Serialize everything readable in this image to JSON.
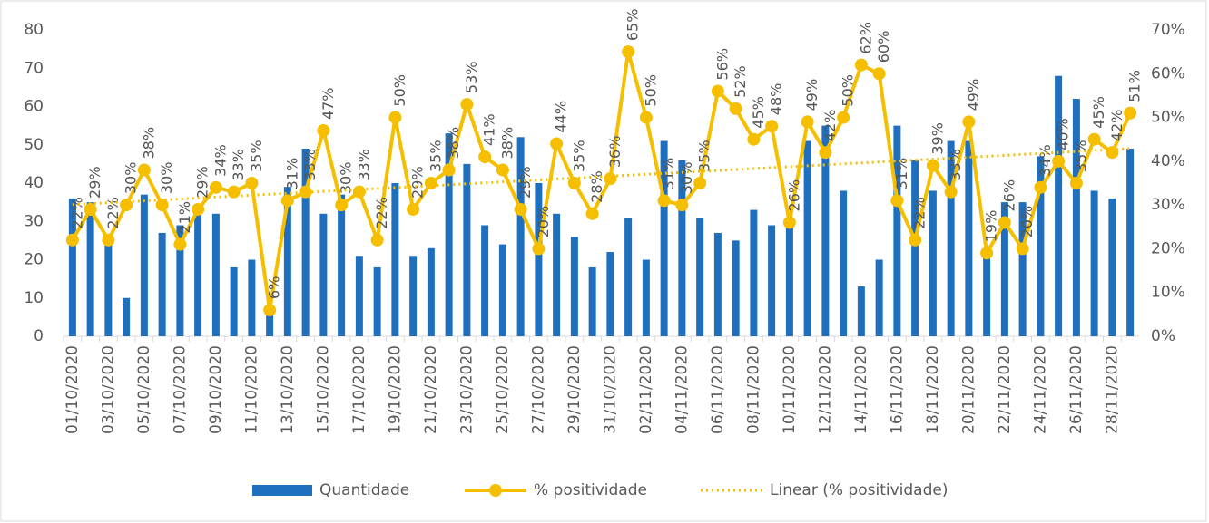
{
  "chart_data": {
    "type": "bar-line",
    "categories": [
      "01/10/2020",
      null,
      "03/10/2020",
      null,
      "05/10/2020",
      null,
      "07/10/2020",
      null,
      "09/10/2020",
      null,
      "11/10/2020",
      null,
      "13/10/2020",
      null,
      "15/10/2020",
      null,
      "17/10/2020",
      null,
      "19/10/2020",
      null,
      "21/10/2020",
      null,
      "23/10/2020",
      null,
      "25/10/2020",
      null,
      "27/10/2020",
      null,
      "29/10/2020",
      null,
      "31/10/2020",
      null,
      "02/11/2020",
      null,
      "04/11/2020",
      null,
      "06/11/2020",
      null,
      "08/11/2020",
      null,
      "10/11/2020",
      null,
      "12/11/2020",
      null,
      "14/11/2020",
      null,
      "16/11/2020",
      null,
      "18/11/2020",
      null,
      "20/11/2020",
      null,
      "22/11/2020",
      null,
      "24/11/2020",
      null,
      "26/11/2020",
      null,
      "28/11/2020",
      null
    ],
    "series": [
      {
        "name": "Quantidade",
        "color": "#1f6fbf",
        "values": [
          36,
          35,
          24,
          10,
          37,
          27,
          29,
          32,
          32,
          18,
          20,
          6,
          39,
          49,
          32,
          37,
          21,
          18,
          40,
          21,
          23,
          53,
          45,
          29,
          24,
          52,
          40,
          32,
          26,
          18,
          22,
          31,
          20,
          51,
          46,
          31,
          27,
          25,
          33,
          29,
          30,
          51,
          55,
          38,
          13,
          20,
          55,
          46,
          38,
          51,
          51,
          22,
          35,
          35,
          47,
          68,
          62,
          38,
          36,
          49
        ]
      },
      {
        "name": "% positividade",
        "color": "#f5bf00",
        "axis": "y2",
        "values": [
          22,
          29,
          22,
          30,
          38,
          30,
          21,
          29,
          34,
          33,
          35,
          6,
          31,
          33,
          47,
          30,
          33,
          22,
          50,
          29,
          35,
          38,
          53,
          41,
          38,
          29,
          20,
          44,
          35,
          28,
          36,
          65,
          50,
          31,
          30,
          35,
          56,
          52,
          45,
          48,
          26,
          49,
          42,
          50,
          62,
          60,
          31,
          22,
          39,
          33,
          49,
          19,
          26,
          20,
          34,
          40,
          35,
          45,
          42,
          51
        ],
        "value_labels": [
          "22%",
          "29%",
          "22%",
          "30%",
          "38%",
          "30%",
          "21%",
          "29%",
          "34%",
          "33%",
          "35%",
          "6%",
          "31%",
          "33%",
          "47%",
          "30%",
          "33%",
          "22%",
          "50%",
          "29%",
          "35%",
          "38%",
          "53%",
          "41%",
          "38%",
          "29%",
          "20%",
          "44%",
          "35%",
          "28%",
          "36%",
          "65%",
          "50%",
          "31%",
          "30%",
          "35%",
          "56%",
          "52%",
          "45%",
          "48%",
          "26%",
          "49%",
          "42%",
          "50%",
          "62%",
          "60%",
          "31%",
          "22%",
          "39%",
          "33%",
          "49%",
          "19%",
          "26%",
          "20%",
          "34%",
          "40%",
          "35%",
          "45%",
          "42%",
          "51%"
        ]
      }
    ],
    "trendline": {
      "name": "Linear (% positividade)",
      "color": "#f5bf00",
      "of": 1
    },
    "ylim": [
      0,
      80
    ],
    "yticks": [
      0,
      10,
      20,
      30,
      40,
      50,
      60,
      70,
      80
    ],
    "y2lim": [
      0,
      70
    ],
    "y2ticks": [
      {
        "value": 0,
        "label": "0%"
      },
      {
        "value": 10,
        "label": "10%"
      },
      {
        "value": 20,
        "label": "20%"
      },
      {
        "value": 30,
        "label": "30%"
      },
      {
        "value": 40,
        "label": "40%"
      },
      {
        "value": 50,
        "label": "50%"
      },
      {
        "value": 60,
        "label": "60%"
      },
      {
        "value": 70,
        "label": "70%"
      }
    ],
    "legend": "bottom"
  }
}
